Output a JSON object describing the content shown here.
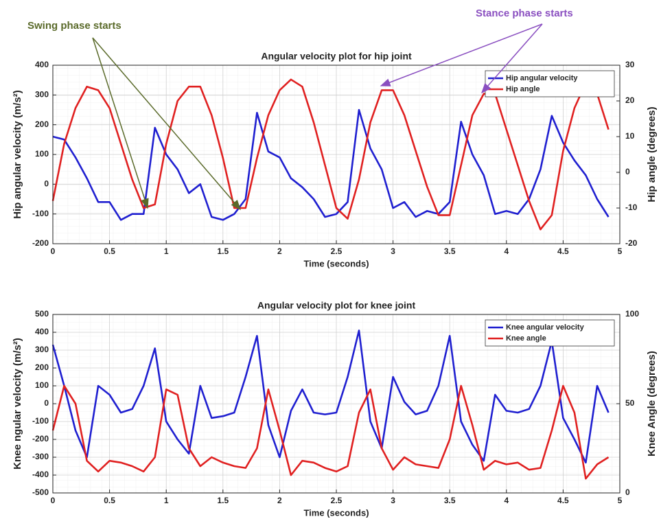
{
  "annotations": [
    "Swing phase starts",
    "Stance phase starts"
  ],
  "chart_data": [
    {
      "type": "line",
      "title": "Angular velocity plot for hip joint",
      "xlabel": "Time (seconds)",
      "ylabel": "Hip angular velocity (m/s²)",
      "y2label": "Hip angle (degrees)",
      "x": [
        0,
        0.1,
        0.2,
        0.3,
        0.4,
        0.5,
        0.6,
        0.7,
        0.8,
        0.9,
        1,
        1.1,
        1.2,
        1.3,
        1.4,
        1.5,
        1.6,
        1.7,
        1.8,
        1.9,
        2,
        2.1,
        2.2,
        2.3,
        2.4,
        2.5,
        2.6,
        2.7,
        2.8,
        2.9,
        3,
        3.1,
        3.2,
        3.3,
        3.4,
        3.5,
        3.6,
        3.7,
        3.8,
        3.9,
        4,
        4.1,
        4.2,
        4.3,
        4.4,
        4.5,
        4.6,
        4.7,
        4.8,
        4.9
      ],
      "series": [
        {
          "name": "Hip angular velocity",
          "color": "#1f1fd0",
          "values": [
            160,
            150,
            90,
            20,
            -60,
            -60,
            -120,
            -100,
            -100,
            190,
            100,
            50,
            -30,
            0,
            -110,
            -120,
            -100,
            -50,
            240,
            110,
            90,
            20,
            -10,
            -50,
            -110,
            -100,
            -60,
            250,
            120,
            50,
            -80,
            -60,
            -110,
            -90,
            -100,
            -60,
            210,
            100,
            30,
            -100,
            -90,
            -100,
            -50,
            50,
            230,
            140,
            80,
            30,
            -50,
            -110
          ]
        },
        {
          "name": "Hip angle",
          "color": "#e02020",
          "axis": "y2",
          "values": [
            -8,
            8,
            18,
            24,
            23,
            18,
            8,
            -2,
            -10,
            -9,
            8,
            20,
            24,
            24,
            16,
            4,
            -10,
            -10,
            4,
            16,
            23,
            26,
            24,
            14,
            2,
            -10,
            -13,
            -2,
            14,
            23,
            23,
            16,
            6,
            -4,
            -12,
            -12,
            2,
            16,
            22,
            22,
            12,
            2,
            -8,
            -16,
            -12,
            6,
            18,
            25,
            22,
            12
          ]
        }
      ],
      "xlim": [
        0,
        5
      ],
      "xticks": [
        0,
        0.5,
        1,
        1.5,
        2,
        2.5,
        3,
        3.5,
        4,
        4.5,
        5
      ],
      "ylim": [
        -200,
        400
      ],
      "yticks": [
        -200,
        -100,
        0,
        100,
        200,
        300,
        400
      ],
      "y2lim": [
        -20,
        30
      ],
      "y2ticks": [
        -20,
        -10,
        0,
        10,
        20,
        30
      ],
      "grid": true,
      "legend": "upper right"
    },
    {
      "type": "line",
      "title": "Angular velocity plot for knee joint",
      "xlabel": "Time (seconds)",
      "ylabel": "Knee ngular velocity (m/s²)",
      "y2label": "Knee Angle (degrees)",
      "x": [
        0,
        0.1,
        0.2,
        0.3,
        0.4,
        0.5,
        0.6,
        0.7,
        0.8,
        0.9,
        1,
        1.1,
        1.2,
        1.3,
        1.4,
        1.5,
        1.6,
        1.7,
        1.8,
        1.9,
        2,
        2.1,
        2.2,
        2.3,
        2.4,
        2.5,
        2.6,
        2.7,
        2.8,
        2.9,
        3,
        3.1,
        3.2,
        3.3,
        3.4,
        3.5,
        3.6,
        3.7,
        3.8,
        3.9,
        4,
        4.1,
        4.2,
        4.3,
        4.4,
        4.5,
        4.6,
        4.7,
        4.8,
        4.9
      ],
      "series": [
        {
          "name": "Knee angular velocity",
          "color": "#1f1fd0",
          "values": [
            330,
            100,
            -150,
            -300,
            100,
            50,
            -50,
            -30,
            100,
            310,
            -100,
            -200,
            -280,
            100,
            -80,
            -70,
            -50,
            150,
            380,
            -120,
            -300,
            -40,
            80,
            -50,
            -60,
            -50,
            150,
            410,
            -100,
            -250,
            150,
            10,
            -60,
            -40,
            100,
            380,
            -100,
            -230,
            -320,
            50,
            -40,
            -50,
            -30,
            100,
            350,
            -80,
            -200,
            -330,
            100,
            -50
          ]
        },
        {
          "name": "Knee angle",
          "color": "#e02020",
          "axis": "y2",
          "values": [
            35,
            60,
            50,
            18,
            12,
            18,
            17,
            15,
            12,
            20,
            58,
            55,
            25,
            15,
            20,
            17,
            15,
            14,
            25,
            58,
            35,
            10,
            18,
            17,
            14,
            12,
            15,
            45,
            58,
            25,
            13,
            20,
            16,
            15,
            14,
            30,
            60,
            38,
            13,
            18,
            16,
            17,
            13,
            14,
            35,
            60,
            45,
            8,
            16,
            20
          ]
        }
      ],
      "xlim": [
        0,
        5
      ],
      "xticks": [
        0,
        0.5,
        1,
        1.5,
        2,
        2.5,
        3,
        3.5,
        4,
        4.5,
        5
      ],
      "ylim": [
        -500,
        500
      ],
      "yticks": [
        -500,
        -400,
        -300,
        -200,
        -100,
        0,
        100,
        200,
        300,
        400,
        500
      ],
      "y2lim": [
        0,
        100
      ],
      "y2ticks": [
        0,
        50,
        100
      ],
      "grid": true,
      "legend": "upper right"
    }
  ]
}
